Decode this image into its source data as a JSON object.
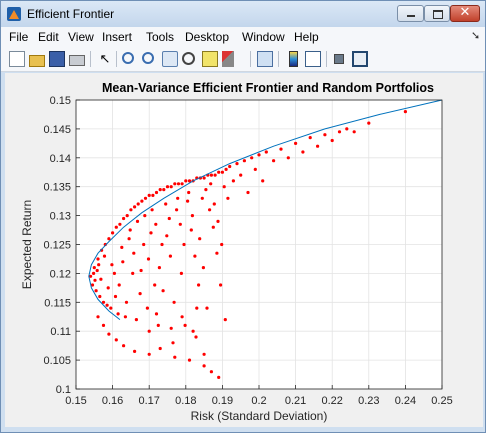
{
  "window": {
    "title": "Efficient Frontier",
    "close_glyph": "✕"
  },
  "menu": [
    "File",
    "Edit",
    "View",
    "Insert",
    "Tools",
    "Desktop",
    "Window",
    "Help"
  ],
  "toolbar_icons": [
    "new-figure-icon",
    "open-file-icon",
    "save-icon",
    "print-icon",
    "edit-plot-icon",
    "zoom-in-icon",
    "zoom-out-icon",
    "pan-icon",
    "rotate-3d-icon",
    "data-cursor-icon",
    "brush-icon",
    "link-plot-icon",
    "colorbar-icon",
    "legend-icon",
    "hide-plot-tools-icon",
    "show-plot-tools-icon"
  ],
  "chart_data": {
    "type": "scatter",
    "title": "Mean-Variance Efficient Frontier and Random Portfolios",
    "xlabel": "Risk (Standard Deviation)",
    "ylabel": "Expected Return",
    "xlim": [
      0.15,
      0.25
    ],
    "ylim": [
      0.1,
      0.15
    ],
    "xticks": [
      "0.15",
      "0.16",
      "0.17",
      "0.18",
      "0.19",
      "0.2",
      "0.21",
      "0.22",
      "0.23",
      "0.24",
      "0.25"
    ],
    "yticks": [
      "0.1",
      "0.105",
      "0.11",
      "0.115",
      "0.12",
      "0.125",
      "0.13",
      "0.135",
      "0.14",
      "0.145",
      "0.15"
    ],
    "grid": true,
    "colors": {
      "frontier": "#0072bd",
      "points": "#ff0000"
    },
    "series": [
      {
        "kind": "line",
        "points": [
          [
            0.1535,
            0.1195
          ],
          [
            0.1542,
            0.1175
          ],
          [
            0.156,
            0.1155
          ],
          [
            0.159,
            0.1135
          ],
          [
            0.162,
            0.112
          ],
          [
            0.1542,
            0.1215
          ],
          [
            0.156,
            0.1235
          ],
          [
            0.159,
            0.1255
          ],
          [
            0.163,
            0.128
          ],
          [
            0.168,
            0.1305
          ],
          [
            0.174,
            0.133
          ],
          [
            0.182,
            0.136
          ],
          [
            0.192,
            0.139
          ],
          [
            0.204,
            0.142
          ],
          [
            0.218,
            0.145
          ],
          [
            0.233,
            0.1475
          ],
          [
            0.25,
            0.15
          ]
        ]
      },
      {
        "kind": "scatter",
        "points": [
          [
            0.154,
            0.1195
          ],
          [
            0.1545,
            0.118
          ],
          [
            0.155,
            0.121
          ],
          [
            0.1555,
            0.117
          ],
          [
            0.156,
            0.1225
          ],
          [
            0.1548,
            0.12
          ],
          [
            0.1552,
            0.1188
          ],
          [
            0.1558,
            0.1205
          ],
          [
            0.1565,
            0.116
          ],
          [
            0.157,
            0.124
          ],
          [
            0.1562,
            0.1215
          ],
          [
            0.1575,
            0.115
          ],
          [
            0.158,
            0.125
          ],
          [
            0.1568,
            0.119
          ],
          [
            0.1585,
            0.1145
          ],
          [
            0.159,
            0.126
          ],
          [
            0.1578,
            0.123
          ],
          [
            0.1595,
            0.114
          ],
          [
            0.16,
            0.127
          ],
          [
            0.1588,
            0.1175
          ],
          [
            0.1605,
            0.12
          ],
          [
            0.161,
            0.128
          ],
          [
            0.1598,
            0.1215
          ],
          [
            0.1615,
            0.113
          ],
          [
            0.162,
            0.1285
          ],
          [
            0.1608,
            0.116
          ],
          [
            0.1625,
            0.1245
          ],
          [
            0.163,
            0.1295
          ],
          [
            0.1618,
            0.118
          ],
          [
            0.1635,
            0.1125
          ],
          [
            0.164,
            0.13
          ],
          [
            0.1628,
            0.122
          ],
          [
            0.1645,
            0.126
          ],
          [
            0.165,
            0.131
          ],
          [
            0.1638,
            0.115
          ],
          [
            0.1655,
            0.12
          ],
          [
            0.166,
            0.1315
          ],
          [
            0.1648,
            0.1275
          ],
          [
            0.1665,
            0.112
          ],
          [
            0.167,
            0.132
          ],
          [
            0.1658,
            0.1235
          ],
          [
            0.1675,
            0.1165
          ],
          [
            0.168,
            0.1325
          ],
          [
            0.1668,
            0.129
          ],
          [
            0.1685,
            0.125
          ],
          [
            0.169,
            0.133
          ],
          [
            0.1678,
            0.1205
          ],
          [
            0.1695,
            0.114
          ],
          [
            0.17,
            0.1335
          ],
          [
            0.1688,
            0.13
          ],
          [
            0.1705,
            0.127
          ],
          [
            0.171,
            0.1335
          ],
          [
            0.1698,
            0.1225
          ],
          [
            0.1715,
            0.118
          ],
          [
            0.172,
            0.134
          ],
          [
            0.1708,
            0.131
          ],
          [
            0.1725,
            0.111
          ],
          [
            0.173,
            0.1345
          ],
          [
            0.1718,
            0.1285
          ],
          [
            0.1735,
            0.125
          ],
          [
            0.174,
            0.1345
          ],
          [
            0.1728,
            0.121
          ],
          [
            0.1745,
            0.132
          ],
          [
            0.175,
            0.135
          ],
          [
            0.1738,
            0.117
          ],
          [
            0.1755,
            0.1295
          ],
          [
            0.176,
            0.135
          ],
          [
            0.1748,
            0.1265
          ],
          [
            0.1765,
            0.108
          ],
          [
            0.177,
            0.1355
          ],
          [
            0.1758,
            0.123
          ],
          [
            0.1775,
            0.131
          ],
          [
            0.178,
            0.1355
          ],
          [
            0.1768,
            0.115
          ],
          [
            0.1785,
            0.1285
          ],
          [
            0.179,
            0.1355
          ],
          [
            0.1778,
            0.133
          ],
          [
            0.1795,
            0.125
          ],
          [
            0.18,
            0.136
          ],
          [
            0.1788,
            0.12
          ],
          [
            0.1805,
            0.1325
          ],
          [
            0.181,
            0.136
          ],
          [
            0.1798,
            0.111
          ],
          [
            0.1815,
            0.1275
          ],
          [
            0.182,
            0.136
          ],
          [
            0.1808,
            0.134
          ],
          [
            0.1825,
            0.123
          ],
          [
            0.183,
            0.1365
          ],
          [
            0.1818,
            0.13
          ],
          [
            0.1835,
            0.118
          ],
          [
            0.184,
            0.1365
          ],
          [
            0.1828,
            0.109
          ],
          [
            0.1845,
            0.133
          ],
          [
            0.185,
            0.1365
          ],
          [
            0.1838,
            0.126
          ],
          [
            0.1855,
            0.1345
          ],
          [
            0.186,
            0.137
          ],
          [
            0.1848,
            0.121
          ],
          [
            0.1865,
            0.131
          ],
          [
            0.187,
            0.137
          ],
          [
            0.1858,
            0.114
          ],
          [
            0.1875,
            0.128
          ],
          [
            0.188,
            0.137
          ],
          [
            0.1868,
            0.1355
          ],
          [
            0.1885,
            0.1235
          ],
          [
            0.189,
            0.1375
          ],
          [
            0.1878,
            0.132
          ],
          [
            0.1895,
            0.118
          ],
          [
            0.19,
            0.1375
          ],
          [
            0.1888,
            0.129
          ],
          [
            0.1905,
            0.135
          ],
          [
            0.191,
            0.138
          ],
          [
            0.1898,
            0.125
          ],
          [
            0.1915,
            0.133
          ],
          [
            0.192,
            0.1385
          ],
          [
            0.1908,
            0.112
          ],
          [
            0.193,
            0.136
          ],
          [
            0.194,
            0.139
          ],
          [
            0.195,
            0.137
          ],
          [
            0.196,
            0.1395
          ],
          [
            0.197,
            0.134
          ],
          [
            0.198,
            0.14
          ],
          [
            0.199,
            0.138
          ],
          [
            0.2,
            0.1405
          ],
          [
            0.201,
            0.136
          ],
          [
            0.202,
            0.141
          ],
          [
            0.204,
            0.1395
          ],
          [
            0.206,
            0.1415
          ],
          [
            0.208,
            0.14
          ],
          [
            0.21,
            0.1425
          ],
          [
            0.212,
            0.141
          ],
          [
            0.214,
            0.1435
          ],
          [
            0.216,
            0.142
          ],
          [
            0.218,
            0.144
          ],
          [
            0.22,
            0.143
          ],
          [
            0.222,
            0.1445
          ],
          [
            0.224,
            0.145
          ],
          [
            0.226,
            0.1445
          ],
          [
            0.23,
            0.146
          ],
          [
            0.24,
            0.148
          ],
          [
            0.156,
            0.1125
          ],
          [
            0.1575,
            0.111
          ],
          [
            0.159,
            0.1095
          ],
          [
            0.161,
            0.1085
          ],
          [
            0.163,
            0.1075
          ],
          [
            0.166,
            0.1065
          ],
          [
            0.17,
            0.106
          ],
          [
            0.173,
            0.107
          ],
          [
            0.177,
            0.1055
          ],
          [
            0.181,
            0.105
          ],
          [
            0.185,
            0.104
          ],
          [
            0.187,
            0.103
          ],
          [
            0.189,
            0.102
          ],
          [
            0.185,
            0.106
          ],
          [
            0.17,
            0.11
          ],
          [
            0.172,
            0.113
          ],
          [
            0.176,
            0.1105
          ],
          [
            0.179,
            0.1125
          ],
          [
            0.183,
            0.114
          ],
          [
            0.182,
            0.11
          ]
        ]
      }
    ]
  }
}
